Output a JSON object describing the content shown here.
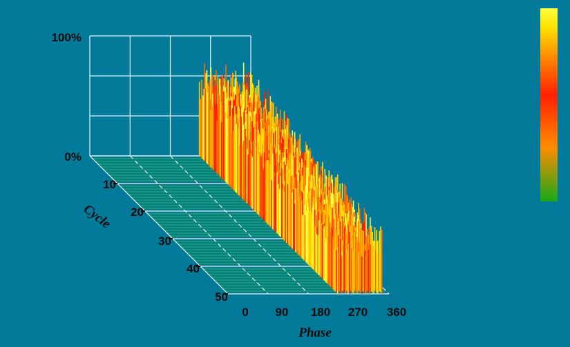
{
  "chart_data": {
    "type": "3d-bar",
    "x_axis": {
      "label": "Phase",
      "ticks": [
        "0",
        "90",
        "180",
        "270",
        "360"
      ],
      "range": [
        0,
        360
      ]
    },
    "depth_axis": {
      "label": "Cycle",
      "ticks": [
        "10",
        "20",
        "30",
        "40",
        "50"
      ],
      "range": [
        0,
        50
      ]
    },
    "z_axis": {
      "ticks": [
        "100%",
        "0%"
      ],
      "range": [
        0,
        100
      ]
    },
    "colorbar": {
      "colors": [
        "#19a81a",
        "#ff8c00",
        "#ff2000",
        "#ff8c00",
        "#ffe000",
        "#ffff40"
      ]
    },
    "series": [
      {
        "phase_start": 245,
        "phase_end": 350,
        "cycle_start": 0,
        "cycle_end": 50,
        "amplitude_pct_start": 80,
        "amplitude_pct_end": 55
      }
    ],
    "grid": true
  }
}
